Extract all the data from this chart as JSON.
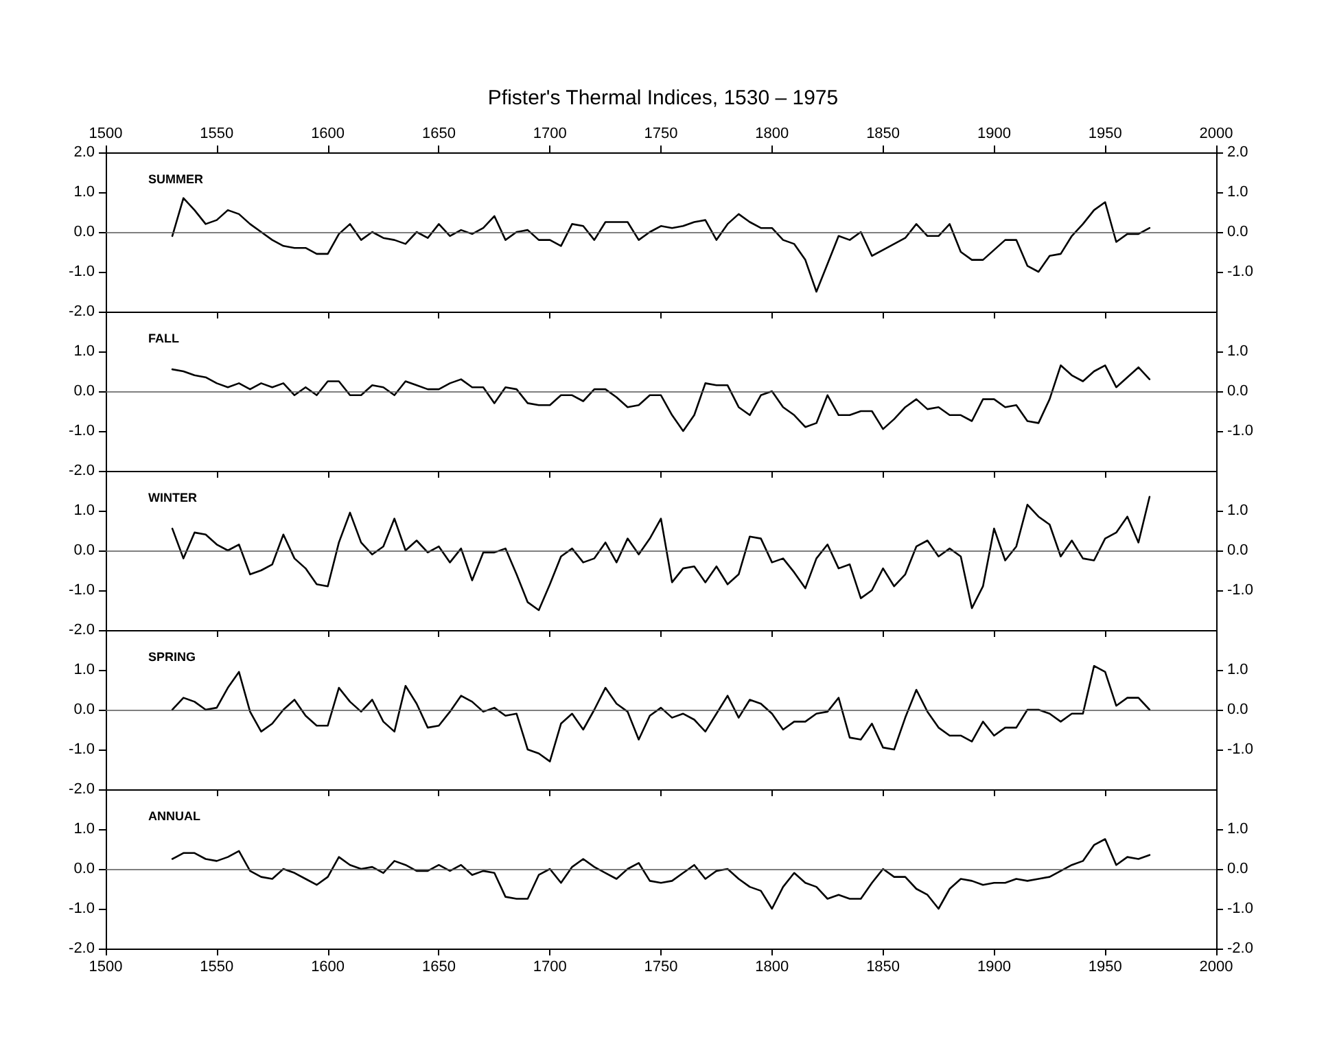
{
  "chart_data": [
    {
      "type": "line",
      "title": "Pfister's Thermal Indices, 1530 – 1975",
      "subtitle": "SUMMER",
      "x": [
        1530,
        1535,
        1540,
        1545,
        1550,
        1555,
        1560,
        1565,
        1570,
        1575,
        1580,
        1585,
        1590,
        1595,
        1600,
        1605,
        1610,
        1615,
        1620,
        1625,
        1630,
        1635,
        1640,
        1645,
        1650,
        1655,
        1660,
        1665,
        1670,
        1675,
        1680,
        1685,
        1690,
        1695,
        1700,
        1705,
        1710,
        1715,
        1720,
        1725,
        1730,
        1735,
        1740,
        1745,
        1750,
        1755,
        1760,
        1765,
        1770,
        1775,
        1780,
        1785,
        1790,
        1795,
        1800,
        1805,
        1810,
        1815,
        1820,
        1825,
        1830,
        1835,
        1840,
        1845,
        1850,
        1855,
        1860,
        1865,
        1870,
        1875,
        1880,
        1885,
        1890,
        1895,
        1900,
        1905,
        1910,
        1915,
        1920,
        1925,
        1930,
        1935,
        1940,
        1945,
        1950,
        1955,
        1960,
        1965,
        1970
      ],
      "series": [
        {
          "color": "#000000",
          "values": [
            -0.1,
            0.85,
            0.55,
            0.2,
            0.3,
            0.55,
            0.45,
            0.2,
            0.0,
            -0.2,
            -0.35,
            -0.4,
            -0.4,
            -0.55,
            -0.55,
            -0.05,
            0.2,
            -0.2,
            0.0,
            -0.15,
            -0.2,
            -0.3,
            0.0,
            -0.15,
            0.2,
            -0.1,
            0.05,
            -0.05,
            0.1,
            0.4,
            -0.2,
            0.0,
            0.05,
            -0.2,
            -0.2,
            -0.35,
            0.2,
            0.15,
            -0.2,
            0.25,
            0.25,
            0.25,
            -0.2,
            0.0,
            0.15,
            0.1,
            0.15,
            0.25,
            0.3,
            -0.2,
            0.2,
            0.45,
            0.25,
            0.1,
            0.1,
            -0.2,
            -0.3,
            -0.7,
            -1.5,
            -0.8,
            -0.1,
            -0.2,
            0.0,
            -0.6,
            -0.45,
            -0.3,
            -0.15,
            0.2,
            -0.1,
            -0.1,
            0.2,
            -0.5,
            -0.7,
            -0.7,
            -0.45,
            -0.2,
            -0.2,
            -0.85,
            -1.0,
            -0.6,
            -0.55,
            -0.1,
            0.2,
            0.55,
            0.75,
            -0.25,
            -0.05,
            -0.05,
            0.1
          ]
        }
      ],
      "xlim": [
        1500,
        2000
      ],
      "xticks": [
        {
          "value": 1500,
          "label": null
        },
        {
          "value": 1550,
          "label": null
        },
        {
          "value": 1600,
          "label": null
        },
        {
          "value": 1650,
          "label": null
        },
        {
          "value": 1700,
          "label": null
        },
        {
          "value": 1750,
          "label": null
        },
        {
          "value": 1800,
          "label": null
        },
        {
          "value": 1850,
          "label": null
        },
        {
          "value": 1900,
          "label": null
        },
        {
          "value": 1950,
          "label": null
        },
        {
          "value": 2000,
          "label": null
        }
      ],
      "x2lim": [
        1500,
        2000
      ],
      "x2ticks": [
        1500,
        1550,
        1600,
        1650,
        1700,
        1750,
        1800,
        1850,
        1900,
        1950,
        2000
      ],
      "ylim": [
        -2,
        2
      ],
      "yticks": [
        {
          "value": 2,
          "label": "2.0"
        },
        {
          "value": 1,
          "label": "1.0"
        },
        {
          "value": 0,
          "label": "0.0"
        },
        {
          "value": -1,
          "label": "-1.0"
        },
        {
          "value": -2,
          "label": "-2.0"
        }
      ],
      "y2lim": [
        -2,
        2
      ],
      "y2ticks": [
        {
          "value": 2,
          "label": "2.0"
        },
        {
          "value": 1,
          "label": "1.0"
        },
        {
          "value": 0,
          "label": "0.0"
        },
        {
          "value": -1,
          "label": "-1.0"
        }
      ],
      "ref_lines": [
        {
          "axis": "y",
          "value": 0
        }
      ],
      "grid": false,
      "tick_labels": "y"
    },
    {
      "type": "line",
      "subtitle": "FALL",
      "x": [
        1530,
        1535,
        1540,
        1545,
        1550,
        1555,
        1560,
        1565,
        1570,
        1575,
        1580,
        1585,
        1590,
        1595,
        1600,
        1605,
        1610,
        1615,
        1620,
        1625,
        1630,
        1635,
        1640,
        1645,
        1650,
        1655,
        1660,
        1665,
        1670,
        1675,
        1680,
        1685,
        1690,
        1695,
        1700,
        1705,
        1710,
        1715,
        1720,
        1725,
        1730,
        1735,
        1740,
        1745,
        1750,
        1755,
        1760,
        1765,
        1770,
        1775,
        1780,
        1785,
        1790,
        1795,
        1800,
        1805,
        1810,
        1815,
        1820,
        1825,
        1830,
        1835,
        1840,
        1845,
        1850,
        1855,
        1860,
        1865,
        1870,
        1875,
        1880,
        1885,
        1890,
        1895,
        1900,
        1905,
        1910,
        1915,
        1920,
        1925,
        1930,
        1935,
        1940,
        1945,
        1950,
        1955,
        1960,
        1965,
        1970
      ],
      "series": [
        {
          "color": "#000000",
          "values": [
            0.55,
            0.5,
            0.4,
            0.35,
            0.2,
            0.1,
            0.2,
            0.05,
            0.2,
            0.1,
            0.2,
            -0.1,
            0.1,
            -0.1,
            0.25,
            0.25,
            -0.1,
            -0.1,
            0.15,
            0.1,
            -0.1,
            0.25,
            0.15,
            0.05,
            0.05,
            0.2,
            0.3,
            0.1,
            0.1,
            -0.3,
            0.1,
            0.05,
            -0.3,
            -0.35,
            -0.35,
            -0.1,
            -0.1,
            -0.25,
            0.05,
            0.05,
            -0.15,
            -0.4,
            -0.35,
            -0.1,
            -0.1,
            -0.6,
            -1.0,
            -0.6,
            0.2,
            0.15,
            0.15,
            -0.4,
            -0.6,
            -0.1,
            0.0,
            -0.4,
            -0.6,
            -0.9,
            -0.8,
            -0.1,
            -0.6,
            -0.6,
            -0.5,
            -0.5,
            -0.95,
            -0.7,
            -0.4,
            -0.2,
            -0.45,
            -0.4,
            -0.6,
            -0.6,
            -0.75,
            -0.2,
            -0.2,
            -0.4,
            -0.35,
            -0.75,
            -0.8,
            -0.2,
            0.65,
            0.4,
            0.25,
            0.5,
            0.65,
            0.1,
            0.35,
            0.6,
            0.3
          ]
        }
      ],
      "xlim": [
        1500,
        2000
      ],
      "xticks": [
        {
          "value": 1500,
          "label": null
        },
        {
          "value": 1550,
          "label": null
        },
        {
          "value": 1600,
          "label": null
        },
        {
          "value": 1650,
          "label": null
        },
        {
          "value": 1700,
          "label": null
        },
        {
          "value": 1750,
          "label": null
        },
        {
          "value": 1800,
          "label": null
        },
        {
          "value": 1850,
          "label": null
        },
        {
          "value": 1900,
          "label": null
        },
        {
          "value": 1950,
          "label": null
        },
        {
          "value": 2000,
          "label": null
        }
      ],
      "ylim": [
        -2,
        2
      ],
      "yticks": [
        {
          "value": 1,
          "label": "1.0"
        },
        {
          "value": 0,
          "label": "0.0"
        },
        {
          "value": -1,
          "label": "-1.0"
        },
        {
          "value": -2,
          "label": "-2.0"
        }
      ],
      "y2lim": [
        -2,
        2
      ],
      "y2ticks": [
        {
          "value": 1,
          "label": "1.0"
        },
        {
          "value": 0,
          "label": "0.0"
        },
        {
          "value": -1,
          "label": "-1.0"
        }
      ],
      "ref_lines": [
        {
          "axis": "y",
          "value": 0
        }
      ],
      "grid": false,
      "tick_labels": "y"
    },
    {
      "type": "line",
      "subtitle": "WINTER",
      "x": [
        1530,
        1535,
        1540,
        1545,
        1550,
        1555,
        1560,
        1565,
        1570,
        1575,
        1580,
        1585,
        1590,
        1595,
        1600,
        1605,
        1610,
        1615,
        1620,
        1625,
        1630,
        1635,
        1640,
        1645,
        1650,
        1655,
        1660,
        1665,
        1670,
        1675,
        1680,
        1685,
        1690,
        1695,
        1700,
        1705,
        1710,
        1715,
        1720,
        1725,
        1730,
        1735,
        1740,
        1745,
        1750,
        1755,
        1760,
        1765,
        1770,
        1775,
        1780,
        1785,
        1790,
        1795,
        1800,
        1805,
        1810,
        1815,
        1820,
        1825,
        1830,
        1835,
        1840,
        1845,
        1850,
        1855,
        1860,
        1865,
        1870,
        1875,
        1880,
        1885,
        1890,
        1895,
        1900,
        1905,
        1910,
        1915,
        1920,
        1925,
        1930,
        1935,
        1940,
        1945,
        1950,
        1955,
        1960,
        1965,
        1970
      ],
      "series": [
        {
          "color": "#000000",
          "values": [
            0.55,
            -0.2,
            0.45,
            0.4,
            0.15,
            0.0,
            0.15,
            -0.6,
            -0.5,
            -0.35,
            0.4,
            -0.2,
            -0.45,
            -0.85,
            -0.9,
            0.2,
            0.95,
            0.2,
            -0.1,
            0.1,
            0.8,
            0.0,
            0.25,
            -0.05,
            0.1,
            -0.3,
            0.05,
            -0.75,
            -0.05,
            -0.05,
            0.05,
            -0.6,
            -1.3,
            -1.5,
            -0.85,
            -0.15,
            0.05,
            -0.3,
            -0.2,
            0.2,
            -0.3,
            0.3,
            -0.1,
            0.3,
            0.8,
            -0.8,
            -0.45,
            -0.4,
            -0.8,
            -0.4,
            -0.85,
            -0.6,
            0.35,
            0.3,
            -0.3,
            -0.2,
            -0.55,
            -0.95,
            -0.2,
            0.15,
            -0.45,
            -0.35,
            -1.2,
            -1.0,
            -0.45,
            -0.9,
            -0.6,
            0.1,
            0.25,
            -0.15,
            0.05,
            -0.15,
            -1.45,
            -0.9,
            0.55,
            -0.25,
            0.1,
            1.15,
            0.85,
            0.65,
            -0.15,
            0.25,
            -0.2,
            -0.25,
            0.3,
            0.45,
            0.85,
            0.2,
            1.35
          ]
        }
      ],
      "xlim": [
        1500,
        2000
      ],
      "xticks": [
        {
          "value": 1500,
          "label": null
        },
        {
          "value": 1550,
          "label": null
        },
        {
          "value": 1600,
          "label": null
        },
        {
          "value": 1650,
          "label": null
        },
        {
          "value": 1700,
          "label": null
        },
        {
          "value": 1750,
          "label": null
        },
        {
          "value": 1800,
          "label": null
        },
        {
          "value": 1850,
          "label": null
        },
        {
          "value": 1900,
          "label": null
        },
        {
          "value": 1950,
          "label": null
        },
        {
          "value": 2000,
          "label": null
        }
      ],
      "ylim": [
        -2,
        2
      ],
      "yticks": [
        {
          "value": 1,
          "label": "1.0"
        },
        {
          "value": 0,
          "label": "0.0"
        },
        {
          "value": -1,
          "label": "-1.0"
        },
        {
          "value": -2,
          "label": "-2.0"
        }
      ],
      "y2lim": [
        -2,
        2
      ],
      "y2ticks": [
        {
          "value": 1,
          "label": "1.0"
        },
        {
          "value": 0,
          "label": "0.0"
        },
        {
          "value": -1,
          "label": "-1.0"
        }
      ],
      "ref_lines": [
        {
          "axis": "y",
          "value": 0
        }
      ],
      "grid": false,
      "tick_labels": "y"
    },
    {
      "type": "line",
      "subtitle": "SPRING",
      "x": [
        1530,
        1535,
        1540,
        1545,
        1550,
        1555,
        1560,
        1565,
        1570,
        1575,
        1580,
        1585,
        1590,
        1595,
        1600,
        1605,
        1610,
        1615,
        1620,
        1625,
        1630,
        1635,
        1640,
        1645,
        1650,
        1655,
        1660,
        1665,
        1670,
        1675,
        1680,
        1685,
        1690,
        1695,
        1700,
        1705,
        1710,
        1715,
        1720,
        1725,
        1730,
        1735,
        1740,
        1745,
        1750,
        1755,
        1760,
        1765,
        1770,
        1775,
        1780,
        1785,
        1790,
        1795,
        1800,
        1805,
        1810,
        1815,
        1820,
        1825,
        1830,
        1835,
        1840,
        1845,
        1850,
        1855,
        1860,
        1865,
        1870,
        1875,
        1880,
        1885,
        1890,
        1895,
        1900,
        1905,
        1910,
        1915,
        1920,
        1925,
        1930,
        1935,
        1940,
        1945,
        1950,
        1955,
        1960,
        1965,
        1970
      ],
      "series": [
        {
          "color": "#000000",
          "values": [
            0.0,
            0.3,
            0.2,
            0.0,
            0.05,
            0.55,
            0.95,
            -0.05,
            -0.55,
            -0.35,
            0.0,
            0.25,
            -0.15,
            -0.4,
            -0.4,
            0.55,
            0.2,
            -0.05,
            0.25,
            -0.3,
            -0.55,
            0.6,
            0.15,
            -0.45,
            -0.4,
            -0.05,
            0.35,
            0.2,
            -0.05,
            0.05,
            -0.15,
            -0.1,
            -1.0,
            -1.1,
            -1.3,
            -0.35,
            -0.1,
            -0.5,
            0.0,
            0.55,
            0.15,
            -0.05,
            -0.75,
            -0.15,
            0.05,
            -0.2,
            -0.1,
            -0.25,
            -0.55,
            -0.1,
            0.35,
            -0.2,
            0.25,
            0.15,
            -0.1,
            -0.5,
            -0.3,
            -0.3,
            -0.1,
            -0.05,
            0.3,
            -0.7,
            -0.75,
            -0.35,
            -0.95,
            -1.0,
            -0.2,
            0.5,
            -0.05,
            -0.45,
            -0.65,
            -0.65,
            -0.8,
            -0.3,
            -0.65,
            -0.45,
            -0.45,
            0.0,
            0.0,
            -0.1,
            -0.3,
            -0.1,
            -0.1,
            1.1,
            0.95,
            0.1,
            0.3,
            0.3,
            0.0
          ]
        }
      ],
      "xlim": [
        1500,
        2000
      ],
      "xticks": [
        {
          "value": 1500,
          "label": null
        },
        {
          "value": 1550,
          "label": null
        },
        {
          "value": 1600,
          "label": null
        },
        {
          "value": 1650,
          "label": null
        },
        {
          "value": 1700,
          "label": null
        },
        {
          "value": 1750,
          "label": null
        },
        {
          "value": 1800,
          "label": null
        },
        {
          "value": 1850,
          "label": null
        },
        {
          "value": 1900,
          "label": null
        },
        {
          "value": 1950,
          "label": null
        },
        {
          "value": 2000,
          "label": null
        }
      ],
      "ylim": [
        -2,
        2
      ],
      "yticks": [
        {
          "value": 1,
          "label": "1.0"
        },
        {
          "value": 0,
          "label": "0.0"
        },
        {
          "value": -1,
          "label": "-1.0"
        },
        {
          "value": -2,
          "label": "-2.0"
        }
      ],
      "y2lim": [
        -2,
        2
      ],
      "y2ticks": [
        {
          "value": 1,
          "label": "1.0"
        },
        {
          "value": 0,
          "label": "0.0"
        },
        {
          "value": -1,
          "label": "-1.0"
        }
      ],
      "ref_lines": [
        {
          "axis": "y",
          "value": 0
        }
      ],
      "grid": false,
      "tick_labels": "y"
    },
    {
      "type": "line",
      "subtitle": "ANNUAL",
      "x": [
        1530,
        1535,
        1540,
        1545,
        1550,
        1555,
        1560,
        1565,
        1570,
        1575,
        1580,
        1585,
        1590,
        1595,
        1600,
        1605,
        1610,
        1615,
        1620,
        1625,
        1630,
        1635,
        1640,
        1645,
        1650,
        1655,
        1660,
        1665,
        1670,
        1675,
        1680,
        1685,
        1690,
        1695,
        1700,
        1705,
        1710,
        1715,
        1720,
        1725,
        1730,
        1735,
        1740,
        1745,
        1750,
        1755,
        1760,
        1765,
        1770,
        1775,
        1780,
        1785,
        1790,
        1795,
        1800,
        1805,
        1810,
        1815,
        1820,
        1825,
        1830,
        1835,
        1840,
        1845,
        1850,
        1855,
        1860,
        1865,
        1870,
        1875,
        1880,
        1885,
        1890,
        1895,
        1900,
        1905,
        1910,
        1915,
        1920,
        1925,
        1930,
        1935,
        1940,
        1945,
        1950,
        1955,
        1960,
        1965,
        1970
      ],
      "series": [
        {
          "color": "#000000",
          "values": [
            0.25,
            0.4,
            0.4,
            0.25,
            0.2,
            0.3,
            0.45,
            -0.05,
            -0.2,
            -0.25,
            0.0,
            -0.1,
            -0.25,
            -0.4,
            -0.2,
            0.3,
            0.1,
            0.0,
            0.05,
            -0.1,
            0.2,
            0.1,
            -0.05,
            -0.05,
            0.1,
            -0.05,
            0.1,
            -0.15,
            -0.05,
            -0.1,
            -0.7,
            -0.75,
            -0.75,
            -0.15,
            0.0,
            -0.35,
            0.05,
            0.25,
            0.05,
            -0.1,
            -0.25,
            0.0,
            0.15,
            -0.3,
            -0.35,
            -0.3,
            -0.1,
            0.1,
            -0.25,
            -0.05,
            0.0,
            -0.25,
            -0.45,
            -0.55,
            -1.0,
            -0.45,
            -0.1,
            -0.35,
            -0.45,
            -0.75,
            -0.65,
            -0.75,
            -0.75,
            -0.35,
            0.0,
            -0.2,
            -0.2,
            -0.5,
            -0.65,
            -1.0,
            -0.5,
            -0.25,
            -0.3,
            -0.4,
            -0.35,
            -0.35,
            -0.25,
            -0.3,
            -0.25,
            -0.2,
            -0.05,
            0.1,
            0.2,
            0.6,
            0.75,
            0.1,
            0.3,
            0.25,
            0.35
          ]
        }
      ],
      "xlim": [
        1500,
        2000
      ],
      "xticks": [
        1500,
        1550,
        1600,
        1650,
        1700,
        1750,
        1800,
        1850,
        1900,
        1950,
        2000
      ],
      "ylim": [
        -2,
        2
      ],
      "yticks": [
        {
          "value": 1,
          "label": "1.0"
        },
        {
          "value": 0,
          "label": "0.0"
        },
        {
          "value": -1,
          "label": "-1.0"
        },
        {
          "value": -2,
          "label": "-2.0"
        }
      ],
      "y2lim": [
        -2,
        2
      ],
      "y2ticks": [
        {
          "value": 1,
          "label": "1.0"
        },
        {
          "value": 0,
          "label": "0.0"
        },
        {
          "value": -1,
          "label": "-1.0"
        },
        {
          "value": -2,
          "label": "-2.0"
        }
      ],
      "ref_lines": [
        {
          "axis": "y",
          "value": 0
        }
      ],
      "grid": false
    }
  ]
}
